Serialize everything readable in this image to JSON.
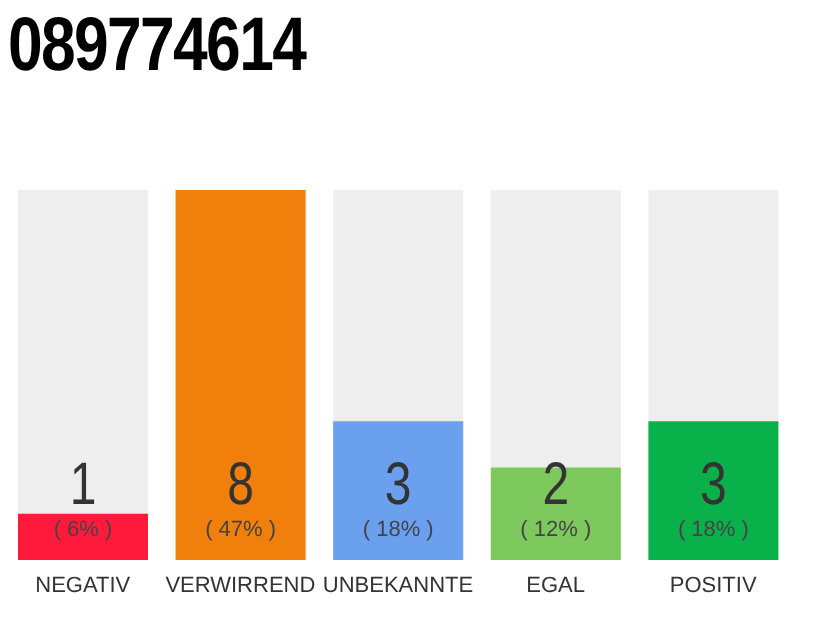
{
  "chart_data": {
    "type": "bar",
    "title": "089774614",
    "categories": [
      "NEGATIV",
      "VERWIRREND",
      "UNBEKANNTE",
      "EGAL",
      "POSITIV"
    ],
    "values": [
      1,
      8,
      3,
      2,
      3
    ],
    "colors": [
      "#ff1a3c",
      "#f07f0b",
      "#6aa0ee",
      "#7dc95e",
      "#0ab14b"
    ],
    "ylim": [
      0,
      8
    ],
    "tick_labels": "x",
    "data_labels": true,
    "annotations": [
      "( 6% )",
      "( 47% )",
      "( 18% )",
      "( 12% )",
      "( 18% )"
    ]
  }
}
